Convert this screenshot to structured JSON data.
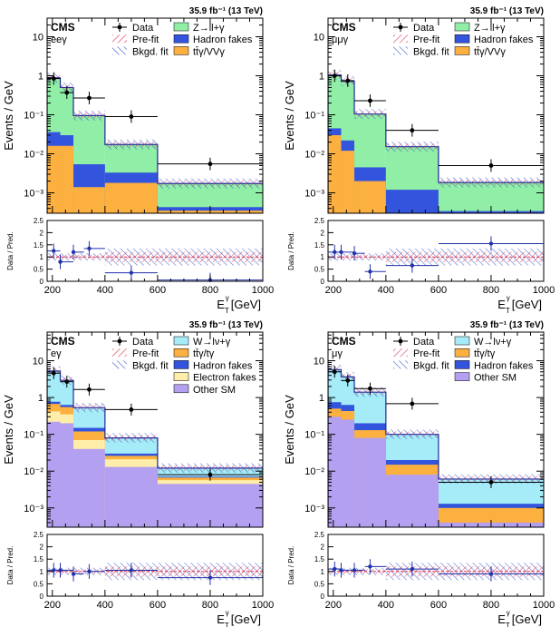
{
  "chart_data": [
    {
      "type": "histogram-stack",
      "channel": "eeγ",
      "cms_label": "CMS",
      "lumi": "35.9 fb⁻¹ (13 TeV)",
      "ylabel": "Events / GeV",
      "ratio_ylabel": "Data / Pred.",
      "xlabel": "E_T^γ [GeV]",
      "bins": [
        180,
        230,
        280,
        400,
        600,
        1000
      ],
      "ylim": [
        0.0003,
        30
      ],
      "yscale": "log",
      "ratio_ylim": [
        0,
        2.5
      ],
      "stack": [
        {
          "name": "tt̄γ/VVγ",
          "color": "#fbb040",
          "values": [
            0.016,
            0.016,
            0.0014,
            0.0018,
            0.00035
          ]
        },
        {
          "name": "Hadron fakes",
          "color": "#3355dd",
          "values": [
            0.02,
            0.014,
            0.004,
            0.0015,
            8e-05
          ]
        },
        {
          "name": "Z→ll+γ",
          "color": "#90eea6",
          "values": [
            0.85,
            0.47,
            0.09,
            0.014,
            0.0013
          ]
        }
      ],
      "data": {
        "x": [
          205,
          255,
          340,
          500,
          800
        ],
        "y": [
          0.85,
          0.37,
          0.27,
          0.09,
          0.0055
        ],
        "yerr_ratio": [
          0.2,
          0.12,
          0.25,
          0.35,
          1.0
        ]
      },
      "ratio": [
        1.25,
        0.8,
        1.2,
        1.35,
        0.35,
        0.05
      ],
      "ratio_x": [
        205,
        230,
        280,
        340,
        500,
        800
      ],
      "legend": [
        "Data",
        "Pre-fit",
        "Bkgd. fit",
        "Z→ll+γ",
        "Hadron fakes",
        "tt̄γ/VVγ"
      ]
    },
    {
      "type": "histogram-stack",
      "channel": "μμγ",
      "cms_label": "CMS",
      "lumi": "35.9 fb⁻¹ (13 TeV)",
      "ylabel": "Events / GeV",
      "ratio_ylabel": "Data / Pred.",
      "xlabel": "E_T^γ [GeV]",
      "bins": [
        180,
        230,
        280,
        400,
        600,
        1000
      ],
      "ylim": [
        0.0003,
        30
      ],
      "yscale": "log",
      "ratio_ylim": [
        0,
        2.5
      ],
      "stack": [
        {
          "name": "tt̄γ/VVγ",
          "color": "#fbb040",
          "values": [
            0.03,
            0.012,
            0.002,
            0.0003,
            0.0003
          ]
        },
        {
          "name": "Hadron fakes",
          "color": "#3355dd",
          "values": [
            0.015,
            0.01,
            0.0025,
            0.0009,
            4e-05
          ]
        },
        {
          "name": "Z→ll+γ",
          "color": "#90eea6",
          "values": [
            1.0,
            0.7,
            0.1,
            0.014,
            0.0015
          ]
        }
      ],
      "data": {
        "x": [
          205,
          255,
          340,
          500,
          800
        ],
        "y": [
          1.0,
          0.75,
          0.23,
          0.04,
          0.005
        ]
      },
      "ratio": [
        1.2,
        1.2,
        1.15,
        0.4,
        0.65,
        1.55
      ],
      "ratio_x": [
        205,
        230,
        280,
        340,
        500,
        800
      ],
      "legend": [
        "Data",
        "Pre-fit",
        "Bkgd. fit",
        "Z→ll+γ",
        "Hadron fakes",
        "tt̄γ/VVγ"
      ]
    },
    {
      "type": "histogram-stack",
      "channel": "eγ",
      "cms_label": "CMS",
      "lumi": "35.9 fb⁻¹ (13 TeV)",
      "ylabel": "Events / GeV",
      "ratio_ylabel": "Data / Pred.",
      "xlabel": "E_T^γ [GeV]",
      "bins": [
        180,
        230,
        280,
        400,
        600,
        1000
      ],
      "ylim": [
        0.0003,
        60
      ],
      "yscale": "log",
      "ratio_ylim": [
        0,
        2.5
      ],
      "stack": [
        {
          "name": "Other SM",
          "color": "#b3a0f0",
          "values": [
            0.22,
            0.2,
            0.04,
            0.013,
            0.0045
          ]
        },
        {
          "name": "Electron fakes",
          "color": "#ffedaa",
          "values": [
            0.2,
            0.15,
            0.03,
            0.008,
            0.0012
          ]
        },
        {
          "name": "tt̄γ/tγ",
          "color": "#fbb040",
          "values": [
            0.25,
            0.2,
            0.05,
            0.005,
            0.001
          ]
        },
        {
          "name": "Hadron fakes",
          "color": "#3355dd",
          "values": [
            0.1,
            0.08,
            0.03,
            0.004,
            0.0004
          ]
        },
        {
          "name": "W→lν+γ",
          "color": "#a6ecf8",
          "values": [
            4.5,
            2.3,
            0.38,
            0.05,
            0.005
          ]
        }
      ],
      "data": {
        "x": [
          205,
          255,
          340,
          500,
          800
        ],
        "y": [
          4.6,
          2.7,
          1.65,
          0.47,
          0.008
        ]
      },
      "ratio": [
        1.05,
        1.05,
        0.9,
        1.0,
        1.05,
        0.75
      ],
      "ratio_x": [
        205,
        230,
        280,
        340,
        500,
        800
      ],
      "legend": [
        "Data",
        "Pre-fit",
        "Bkgd. fit",
        "W→lν+γ",
        "tt̄γ/tγ",
        "Hadron fakes",
        "Electron fakes",
        "Other SM"
      ]
    },
    {
      "type": "histogram-stack",
      "channel": "μγ",
      "cms_label": "CMS",
      "lumi": "35.9 fb⁻¹ (13 TeV)",
      "ylabel": "Events / GeV",
      "ratio_ylabel": "Data / Pred.",
      "xlabel": "E_T^γ [GeV]",
      "bins": [
        180,
        230,
        280,
        400,
        600,
        1000
      ],
      "ylim": [
        0.0003,
        60
      ],
      "yscale": "log",
      "ratio_ylim": [
        0,
        2.5
      ],
      "stack": [
        {
          "name": "Other SM",
          "color": "#b3a0f0",
          "values": [
            0.3,
            0.25,
            0.08,
            0.008,
            0.0004
          ]
        },
        {
          "name": "tt̄γ/tγ",
          "color": "#fbb040",
          "values": [
            0.2,
            0.18,
            0.05,
            0.007,
            0.0006
          ]
        },
        {
          "name": "Hadron fakes",
          "color": "#3355dd",
          "values": [
            0.25,
            0.2,
            0.07,
            0.005,
            0.0003
          ]
        },
        {
          "name": "W→lν+γ",
          "color": "#a6ecf8",
          "values": [
            5.0,
            3.0,
            1.2,
            0.08,
            0.0048
          ]
        }
      ],
      "data": {
        "x": [
          205,
          255,
          340,
          500,
          800
        ],
        "y": [
          5.0,
          2.9,
          1.75,
          0.68,
          0.005
        ]
      },
      "ratio": [
        1.1,
        1.05,
        1.05,
        1.2,
        1.1,
        0.9
      ],
      "ratio_x": [
        205,
        230,
        280,
        340,
        500,
        800
      ],
      "legend": [
        "Data",
        "Pre-fit",
        "Bkgd. fit",
        "W→lν+γ",
        "tt̄γ/tγ",
        "Hadron fakes",
        "Other SM"
      ]
    }
  ],
  "common": {
    "x_ticks": [
      200,
      400,
      600,
      800,
      1000
    ],
    "x_tick_labels": [
      "200",
      "400",
      "600",
      "800",
      "1000"
    ],
    "y_tick_labels": [
      "10⁻³",
      "10⁻²",
      "10⁻¹",
      "1",
      "10"
    ],
    "ratio_tick_labels": [
      "0",
      "0.5",
      "1",
      "1.5",
      "2",
      "2.5"
    ],
    "data_color": "#000000",
    "prefit_color": "#e0304e",
    "bkgfit_color": "#3355cc"
  }
}
